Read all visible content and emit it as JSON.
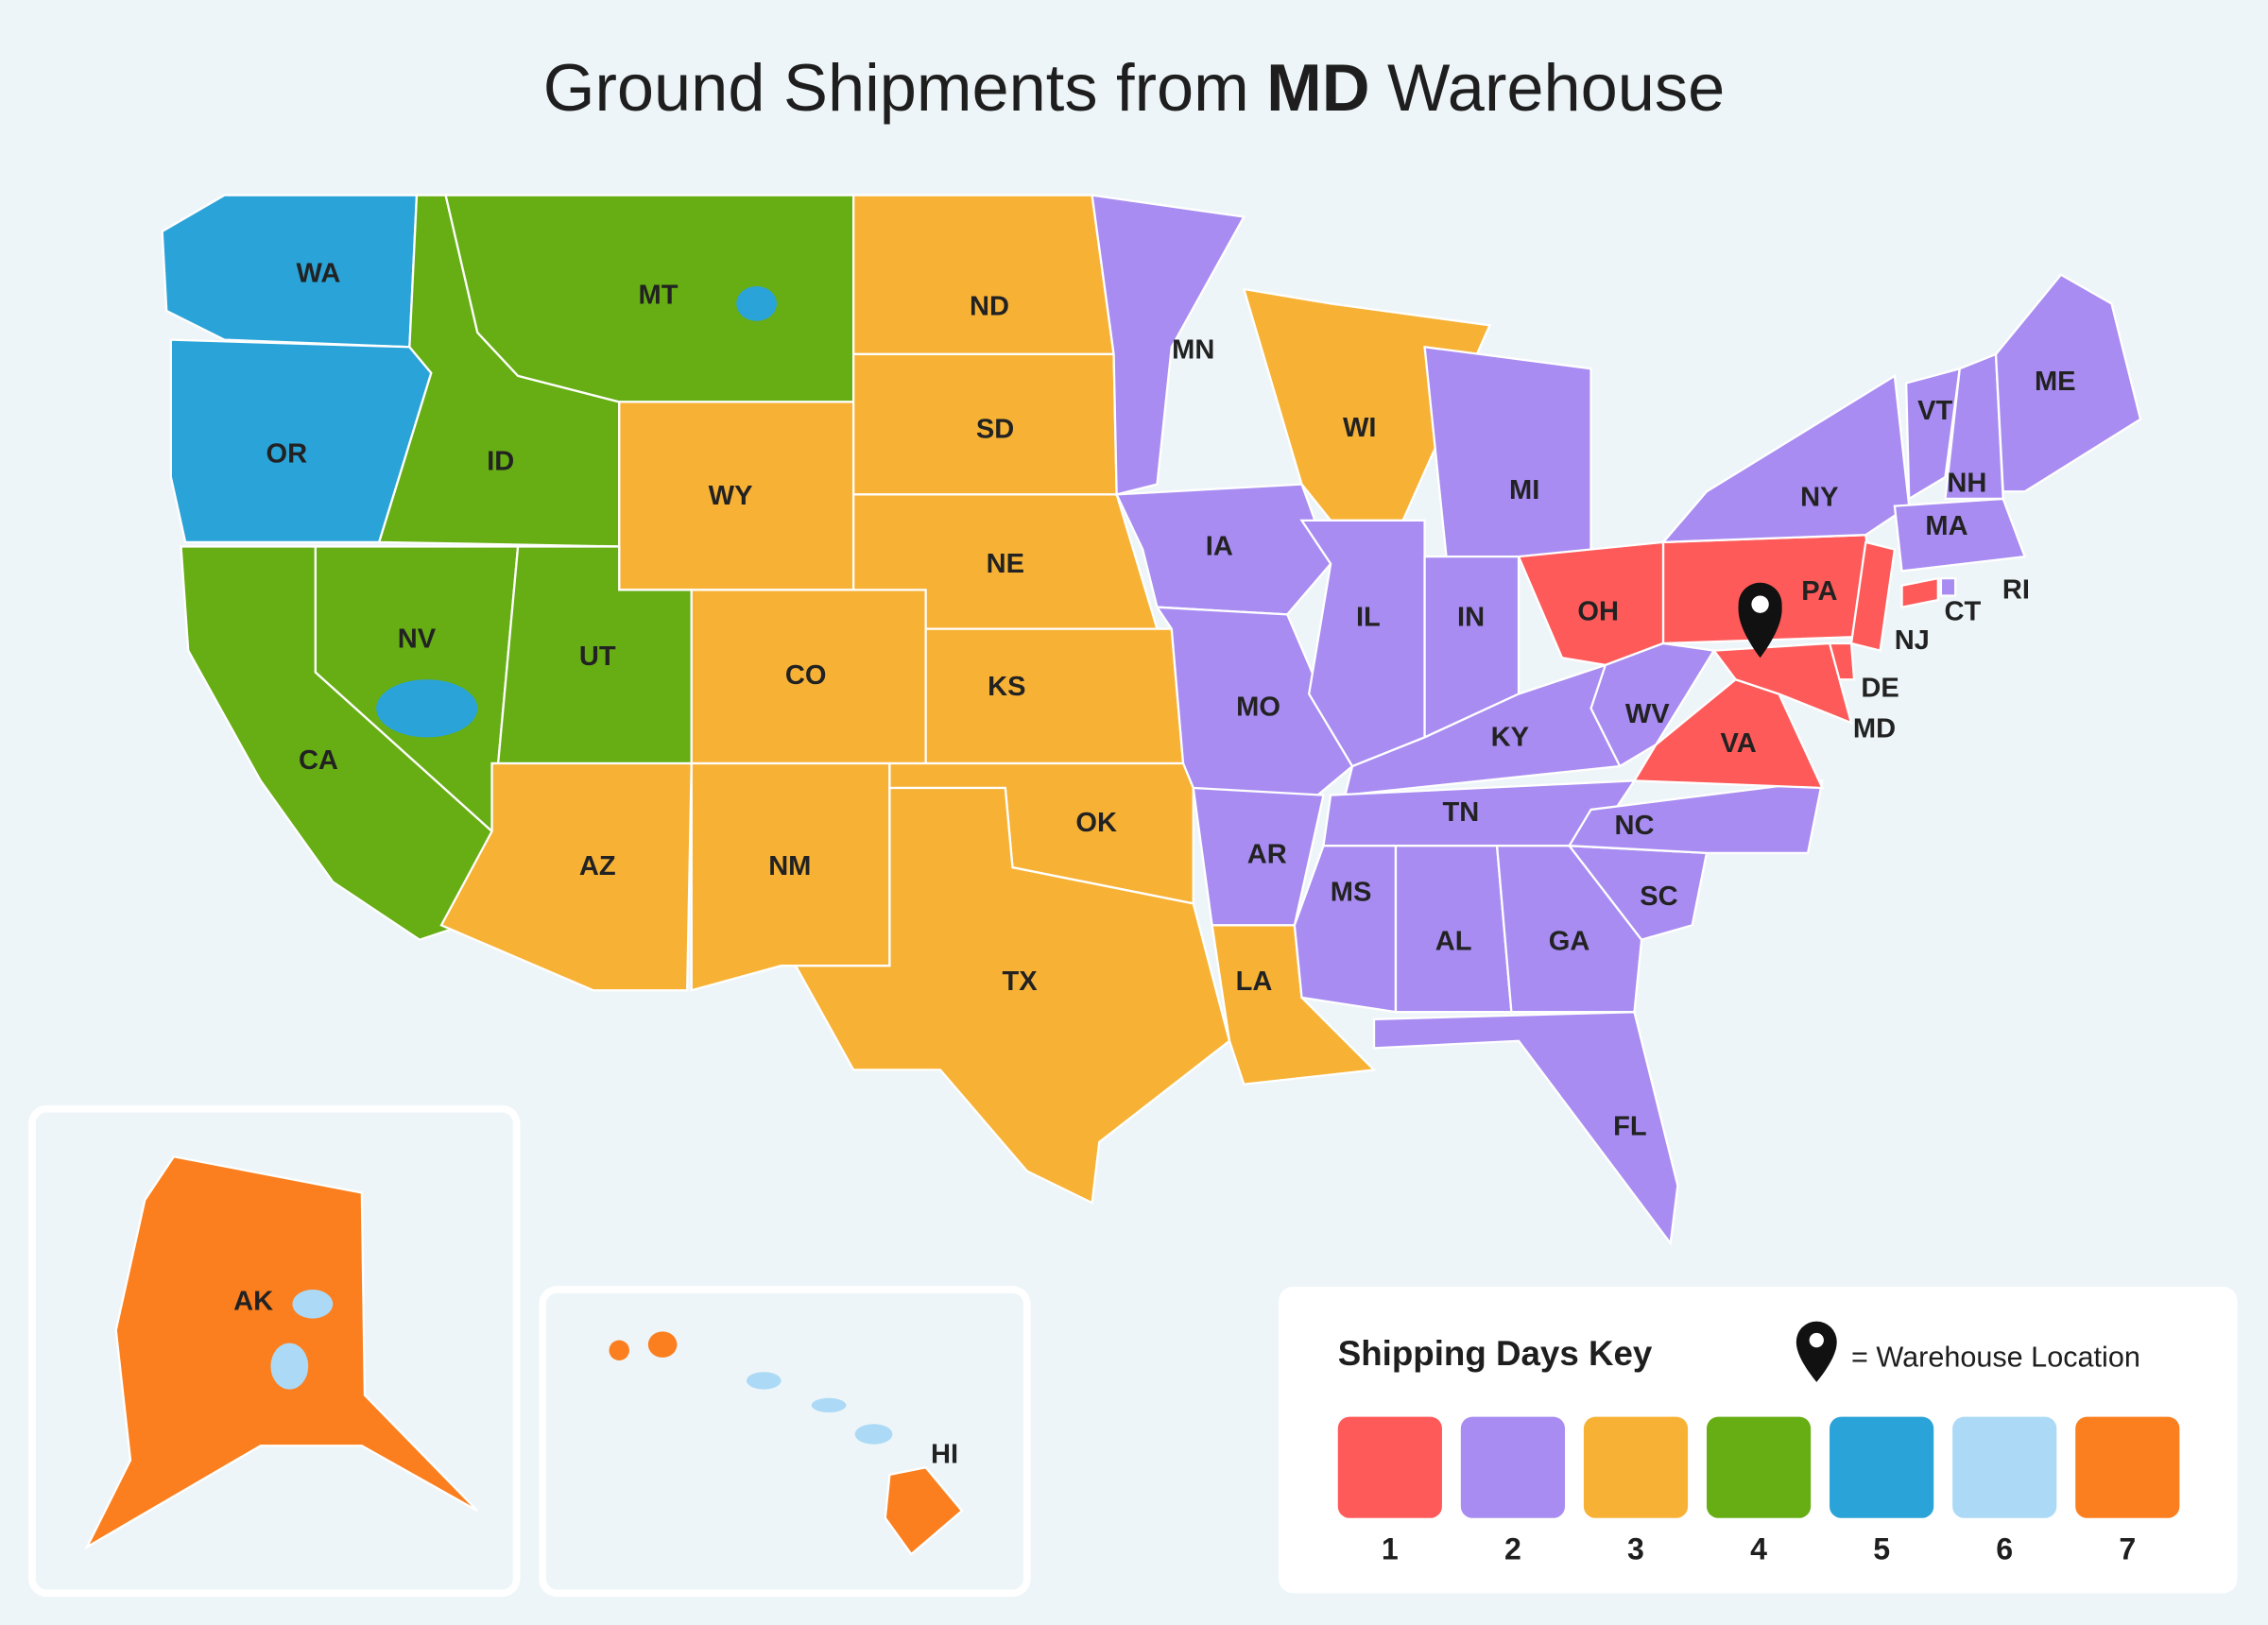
{
  "header": {
    "title_prefix": "Ground Shipments from",
    "title_bold": "MD",
    "title_suffix": "Warehouse"
  },
  "states": [
    {
      "label": "WA",
      "days": 5
    },
    {
      "label": "OR",
      "days": 5
    },
    {
      "label": "CA",
      "days": 4
    },
    {
      "label": "NV",
      "days": 4
    },
    {
      "label": "ID",
      "days": 4
    },
    {
      "label": "MT",
      "days": 4
    },
    {
      "label": "WY",
      "days": 3
    },
    {
      "label": "UT",
      "days": 4
    },
    {
      "label": "AZ",
      "days": 3
    },
    {
      "label": "CO",
      "days": 3
    },
    {
      "label": "NM",
      "days": 3
    },
    {
      "label": "ND",
      "days": 3
    },
    {
      "label": "SD",
      "days": 3
    },
    {
      "label": "NE",
      "days": 3
    },
    {
      "label": "KS",
      "days": 3
    },
    {
      "label": "OK",
      "days": 3
    },
    {
      "label": "TX",
      "days": 3
    },
    {
      "label": "MN",
      "days": 2
    },
    {
      "label": "IA",
      "days": 2
    },
    {
      "label": "MO",
      "days": 2
    },
    {
      "label": "AR",
      "days": 2
    },
    {
      "label": "LA",
      "days": 3
    },
    {
      "label": "WI",
      "days": 3
    },
    {
      "label": "MI",
      "days": 2
    },
    {
      "label": "IL",
      "days": 2
    },
    {
      "label": "IN",
      "days": 2
    },
    {
      "label": "OH",
      "days": 1
    },
    {
      "label": "KY",
      "days": 2
    },
    {
      "label": "TN",
      "days": 2
    },
    {
      "label": "MS",
      "days": 2
    },
    {
      "label": "AL",
      "days": 2
    },
    {
      "label": "GA",
      "days": 2
    },
    {
      "label": "FL",
      "days": 2
    },
    {
      "label": "SC",
      "days": 2
    },
    {
      "label": "NC",
      "days": 2
    },
    {
      "label": "VA",
      "days": 1
    },
    {
      "label": "WV",
      "days": 2
    },
    {
      "label": "PA",
      "days": 1
    },
    {
      "label": "NY",
      "days": 2
    },
    {
      "label": "NJ",
      "days": 1
    },
    {
      "label": "DE",
      "days": 1
    },
    {
      "label": "MD",
      "days": 1
    },
    {
      "label": "CT",
      "days": 1
    },
    {
      "label": "RI",
      "days": 2
    },
    {
      "label": "MA",
      "days": 2
    },
    {
      "label": "VT",
      "days": 2
    },
    {
      "label": "NH",
      "days": 2
    },
    {
      "label": "ME",
      "days": 2
    },
    {
      "label": "AK",
      "days": 7
    },
    {
      "label": "HI",
      "days": 7
    }
  ],
  "legend": {
    "title": "Shipping Days Key",
    "warehouse_note": "= Warehouse Location",
    "keys": [
      {
        "days": 1,
        "color": "#ff5a5a"
      },
      {
        "days": 2,
        "color": "#a88cf2"
      },
      {
        "days": 3,
        "color": "#f7b236"
      },
      {
        "days": 4,
        "color": "#66ae14"
      },
      {
        "days": 5,
        "color": "#2aa3d8"
      },
      {
        "days": 6,
        "color": "#acdaf6"
      },
      {
        "days": 7,
        "color": "#fb7f1f"
      }
    ]
  }
}
